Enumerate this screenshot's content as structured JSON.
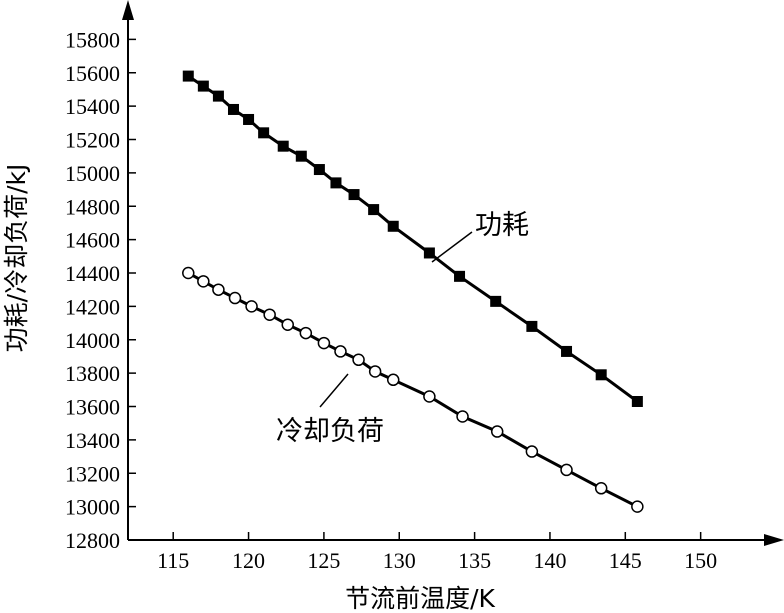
{
  "chart_data": {
    "type": "line",
    "xlabel": "节流前温度/K",
    "ylabel": "功耗/冷却负荷/kJ",
    "xlim": [
      112,
      155
    ],
    "ylim": [
      12800,
      16000
    ],
    "x_ticks": [
      115,
      120,
      125,
      130,
      135,
      140,
      145,
      150
    ],
    "y_ticks": [
      12800,
      13000,
      13200,
      13400,
      13600,
      13800,
      14000,
      14200,
      14400,
      14600,
      14800,
      15000,
      15200,
      15400,
      15600,
      15800
    ],
    "grid": false,
    "series": [
      {
        "name": "功耗",
        "marker": "filled-square",
        "x": [
          116,
          117,
          118,
          119,
          120,
          121,
          122.3,
          123.5,
          124.7,
          125.8,
          127,
          128.3,
          129.6,
          132,
          134,
          136.4,
          138.8,
          141.1,
          143.4,
          145.8
        ],
        "y": [
          15580,
          15520,
          15460,
          15380,
          15320,
          15240,
          15160,
          15100,
          15020,
          14940,
          14870,
          14780,
          14680,
          14520,
          14380,
          14230,
          14080,
          13930,
          13790,
          13630
        ]
      },
      {
        "name": "冷却负荷",
        "marker": "open-circle",
        "x": [
          116,
          117,
          118,
          119.1,
          120.2,
          121.4,
          122.6,
          123.8,
          125,
          126.1,
          127.3,
          128.4,
          129.6,
          132,
          134.2,
          136.5,
          138.8,
          141.1,
          143.4,
          145.8
        ],
        "y": [
          14400,
          14350,
          14300,
          14250,
          14200,
          14150,
          14090,
          14040,
          13980,
          13930,
          13880,
          13810,
          13760,
          13660,
          13540,
          13450,
          13330,
          13220,
          13110,
          13000
        ]
      }
    ],
    "annotations": [
      {
        "series": "功耗",
        "text": "功耗"
      },
      {
        "series": "冷却负荷",
        "text": "冷却负荷"
      }
    ]
  }
}
